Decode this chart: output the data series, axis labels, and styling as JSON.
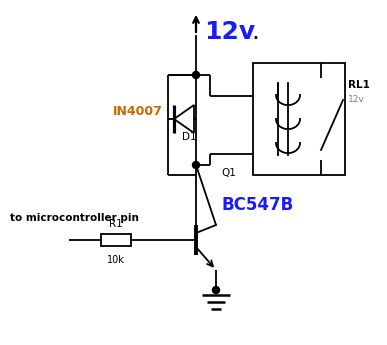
{
  "bg_color": "#ffffff",
  "lc": "#000000",
  "title_color": "#1a1aff",
  "in4007_color": "#cc6600",
  "bc547b_color": "#1a1aff",
  "title_text": "12v",
  "dot_text": ".",
  "in4007_text": "IN4007",
  "d1_text": "D1",
  "rl1_text": "RL1",
  "rl1_sub": "12v",
  "q1_text": "Q1",
  "bc547b_text": "BC547B",
  "r1_text": "R1",
  "r1_val": "10k",
  "mcu_text": "to microcontroller pin"
}
